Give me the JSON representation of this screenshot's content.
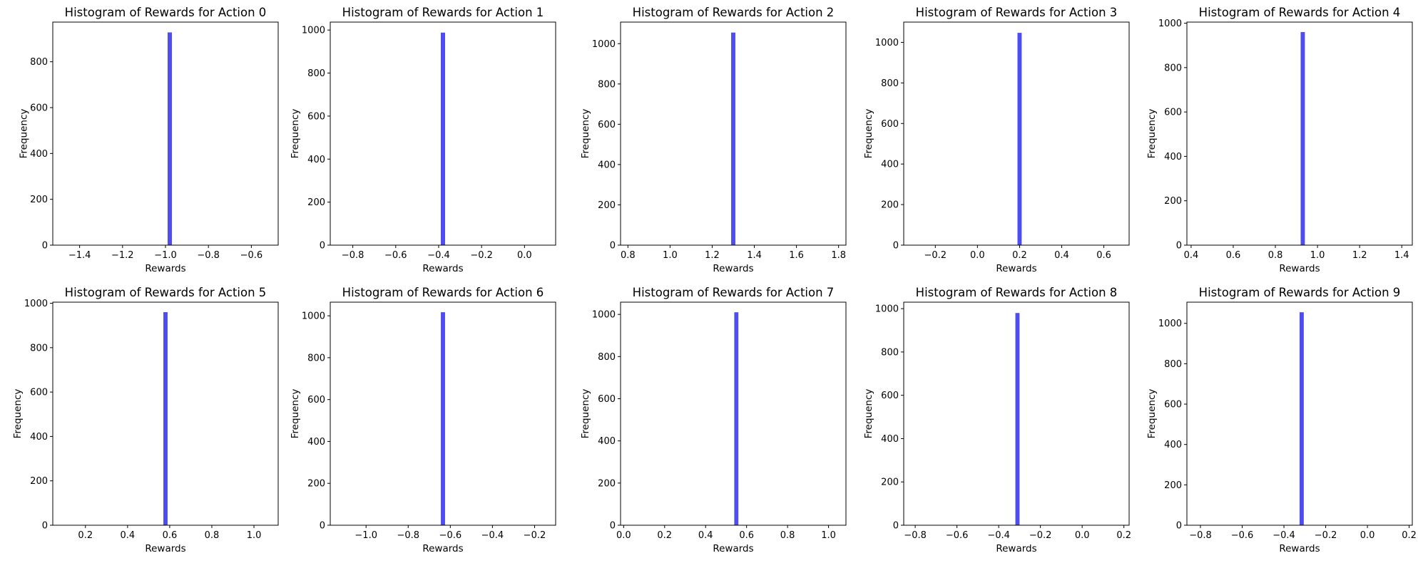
{
  "chart_data": [
    {
      "type": "bar",
      "title": "Histogram of Rewards for Action 0",
      "xlabel": "Rewards",
      "ylabel": "Frequency",
      "xlim": [
        -1.525,
        -0.475
      ],
      "ylim": [
        0,
        973
      ],
      "xticks": [
        -1.4,
        -1.2,
        -1.0,
        -0.8,
        -0.6
      ],
      "xtick_labels": [
        "−1.4",
        "−1.2",
        "−1.0",
        "−0.8",
        "−0.6"
      ],
      "yticks": [
        0,
        200,
        400,
        600,
        800
      ],
      "ytick_labels": [
        "0",
        "200",
        "400",
        "600",
        "800"
      ],
      "bins": [
        {
          "x0": -0.99,
          "x1": -0.97,
          "value": 928
        }
      ],
      "color": "#4d4df2"
    },
    {
      "type": "bar",
      "title": "Histogram of Rewards for Action 1",
      "xlabel": "Rewards",
      "ylabel": "Frequency",
      "xlim": [
        -0.905,
        0.145
      ],
      "ylim": [
        0,
        1037
      ],
      "xticks": [
        -0.8,
        -0.6,
        -0.4,
        -0.2,
        0.0
      ],
      "xtick_labels": [
        "−0.8",
        "−0.6",
        "−0.4",
        "−0.2",
        "0.0"
      ],
      "yticks": [
        0,
        200,
        400,
        600,
        800,
        1000
      ],
      "ytick_labels": [
        "0",
        "200",
        "400",
        "600",
        "800",
        "1000"
      ],
      "bins": [
        {
          "x0": -0.39,
          "x1": -0.37,
          "value": 988
        }
      ],
      "color": "#4d4df2"
    },
    {
      "type": "bar",
      "title": "Histogram of Rewards for Action 2",
      "xlabel": "Rewards",
      "ylabel": "Frequency",
      "xlim": [
        0.765,
        1.835
      ],
      "ylim": [
        0,
        1107
      ],
      "xticks": [
        0.8,
        1.0,
        1.2,
        1.4,
        1.6,
        1.8
      ],
      "xtick_labels": [
        "0.8",
        "1.0",
        "1.2",
        "1.4",
        "1.6",
        "1.8"
      ],
      "yticks": [
        0,
        200,
        400,
        600,
        800,
        1000
      ],
      "ytick_labels": [
        "0",
        "200",
        "400",
        "600",
        "800",
        "1000"
      ],
      "bins": [
        {
          "x0": 1.29,
          "x1": 1.31,
          "value": 1055
        }
      ],
      "color": "#4d4df2"
    },
    {
      "type": "bar",
      "title": "Histogram of Rewards for Action 3",
      "xlabel": "Rewards",
      "ylabel": "Frequency",
      "xlim": [
        -0.35,
        0.72
      ],
      "ylim": [
        0,
        1100
      ],
      "xticks": [
        -0.2,
        0.0,
        0.2,
        0.4,
        0.6
      ],
      "xtick_labels": [
        "−0.2",
        "0.0",
        "0.2",
        "0.4",
        "0.6"
      ],
      "yticks": [
        0,
        200,
        400,
        600,
        800,
        1000
      ],
      "ytick_labels": [
        "0",
        "200",
        "400",
        "600",
        "800",
        "1000"
      ],
      "bins": [
        {
          "x0": 0.19,
          "x1": 0.21,
          "value": 1047
        }
      ],
      "color": "#4d4df2"
    },
    {
      "type": "bar",
      "title": "Histogram of Rewards for Action 4",
      "xlabel": "Rewards",
      "ylabel": "Frequency",
      "xlim": [
        0.38,
        1.45
      ],
      "ylim": [
        0,
        1005
      ],
      "xticks": [
        0.4,
        0.6,
        0.8,
        1.0,
        1.2,
        1.4
      ],
      "xtick_labels": [
        "0.4",
        "0.6",
        "0.8",
        "1.0",
        "1.2",
        "1.4"
      ],
      "yticks": [
        0,
        200,
        400,
        600,
        800,
        1000
      ],
      "ytick_labels": [
        "0",
        "200",
        "400",
        "600",
        "800",
        "1000"
      ],
      "bins": [
        {
          "x0": 0.92,
          "x1": 0.94,
          "value": 960
        }
      ],
      "color": "#4d4df2"
    },
    {
      "type": "bar",
      "title": "Histogram of Rewards for Action 5",
      "xlabel": "Rewards",
      "ylabel": "Frequency",
      "xlim": [
        0.045,
        1.115
      ],
      "ylim": [
        0,
        1005
      ],
      "xticks": [
        0.2,
        0.4,
        0.6,
        0.8,
        1.0
      ],
      "xtick_labels": [
        "0.2",
        "0.4",
        "0.6",
        "0.8",
        "1.0"
      ],
      "yticks": [
        0,
        200,
        400,
        600,
        800,
        1000
      ],
      "ytick_labels": [
        "0",
        "200",
        "400",
        "600",
        "800",
        "1000"
      ],
      "bins": [
        {
          "x0": 0.57,
          "x1": 0.59,
          "value": 960
        }
      ],
      "color": "#4d4df2"
    },
    {
      "type": "bar",
      "title": "Histogram of Rewards for Action 6",
      "xlabel": "Rewards",
      "ylabel": "Frequency",
      "xlim": [
        -1.17,
        -0.1
      ],
      "ylim": [
        0,
        1065
      ],
      "xticks": [
        -1.0,
        -0.8,
        -0.6,
        -0.4,
        -0.2
      ],
      "xtick_labels": [
        "−1.0",
        "−0.8",
        "−0.6",
        "−0.4",
        "−0.2"
      ],
      "yticks": [
        0,
        200,
        400,
        600,
        800,
        1000
      ],
      "ytick_labels": [
        "0",
        "200",
        "400",
        "600",
        "800",
        "1000"
      ],
      "bins": [
        {
          "x0": -0.645,
          "x1": -0.625,
          "value": 1017
        }
      ],
      "color": "#4d4df2"
    },
    {
      "type": "bar",
      "title": "Histogram of Rewards for Action 7",
      "xlabel": "Rewards",
      "ylabel": "Frequency",
      "xlim": [
        -0.015,
        1.085
      ],
      "ylim": [
        0,
        1058
      ],
      "xticks": [
        0.0,
        0.2,
        0.4,
        0.6,
        0.8,
        1.0
      ],
      "xtick_labels": [
        "0.0",
        "0.2",
        "0.4",
        "0.6",
        "0.8",
        "1.0"
      ],
      "yticks": [
        0,
        200,
        400,
        600,
        800,
        1000
      ],
      "ytick_labels": [
        "0",
        "200",
        "400",
        "600",
        "800",
        "1000"
      ],
      "bins": [
        {
          "x0": 0.54,
          "x1": 0.56,
          "value": 1010
        }
      ],
      "color": "#4d4df2"
    },
    {
      "type": "bar",
      "title": "Histogram of Rewards for Action 8",
      "xlabel": "Rewards",
      "ylabel": "Frequency",
      "xlim": [
        -0.855,
        0.225
      ],
      "ylim": [
        0,
        1030
      ],
      "xticks": [
        -0.8,
        -0.6,
        -0.4,
        -0.2,
        0.0,
        0.2
      ],
      "xtick_labels": [
        "−0.8",
        "−0.6",
        "−0.4",
        "−0.2",
        "0.0",
        "0.2"
      ],
      "yticks": [
        0,
        200,
        400,
        600,
        800,
        1000
      ],
      "ytick_labels": [
        "0",
        "200",
        "400",
        "600",
        "800",
        "1000"
      ],
      "bins": [
        {
          "x0": -0.32,
          "x1": -0.3,
          "value": 980
        }
      ],
      "color": "#4d4df2"
    },
    {
      "type": "bar",
      "title": "Histogram of Rewards for Action 9",
      "xlabel": "Rewards",
      "ylabel": "Frequency",
      "xlim": [
        -0.865,
        0.215
      ],
      "ylim": [
        0,
        1105
      ],
      "xticks": [
        -0.8,
        -0.6,
        -0.4,
        -0.2,
        0.0,
        0.2
      ],
      "xtick_labels": [
        "−0.8",
        "−0.6",
        "−0.4",
        "−0.2",
        "0.0",
        "0.2"
      ],
      "yticks": [
        0,
        200,
        400,
        600,
        800,
        1000
      ],
      "ytick_labels": [
        "0",
        "200",
        "400",
        "600",
        "800",
        "1000"
      ],
      "bins": [
        {
          "x0": -0.325,
          "x1": -0.305,
          "value": 1055
        }
      ],
      "color": "#4d4df2"
    }
  ]
}
